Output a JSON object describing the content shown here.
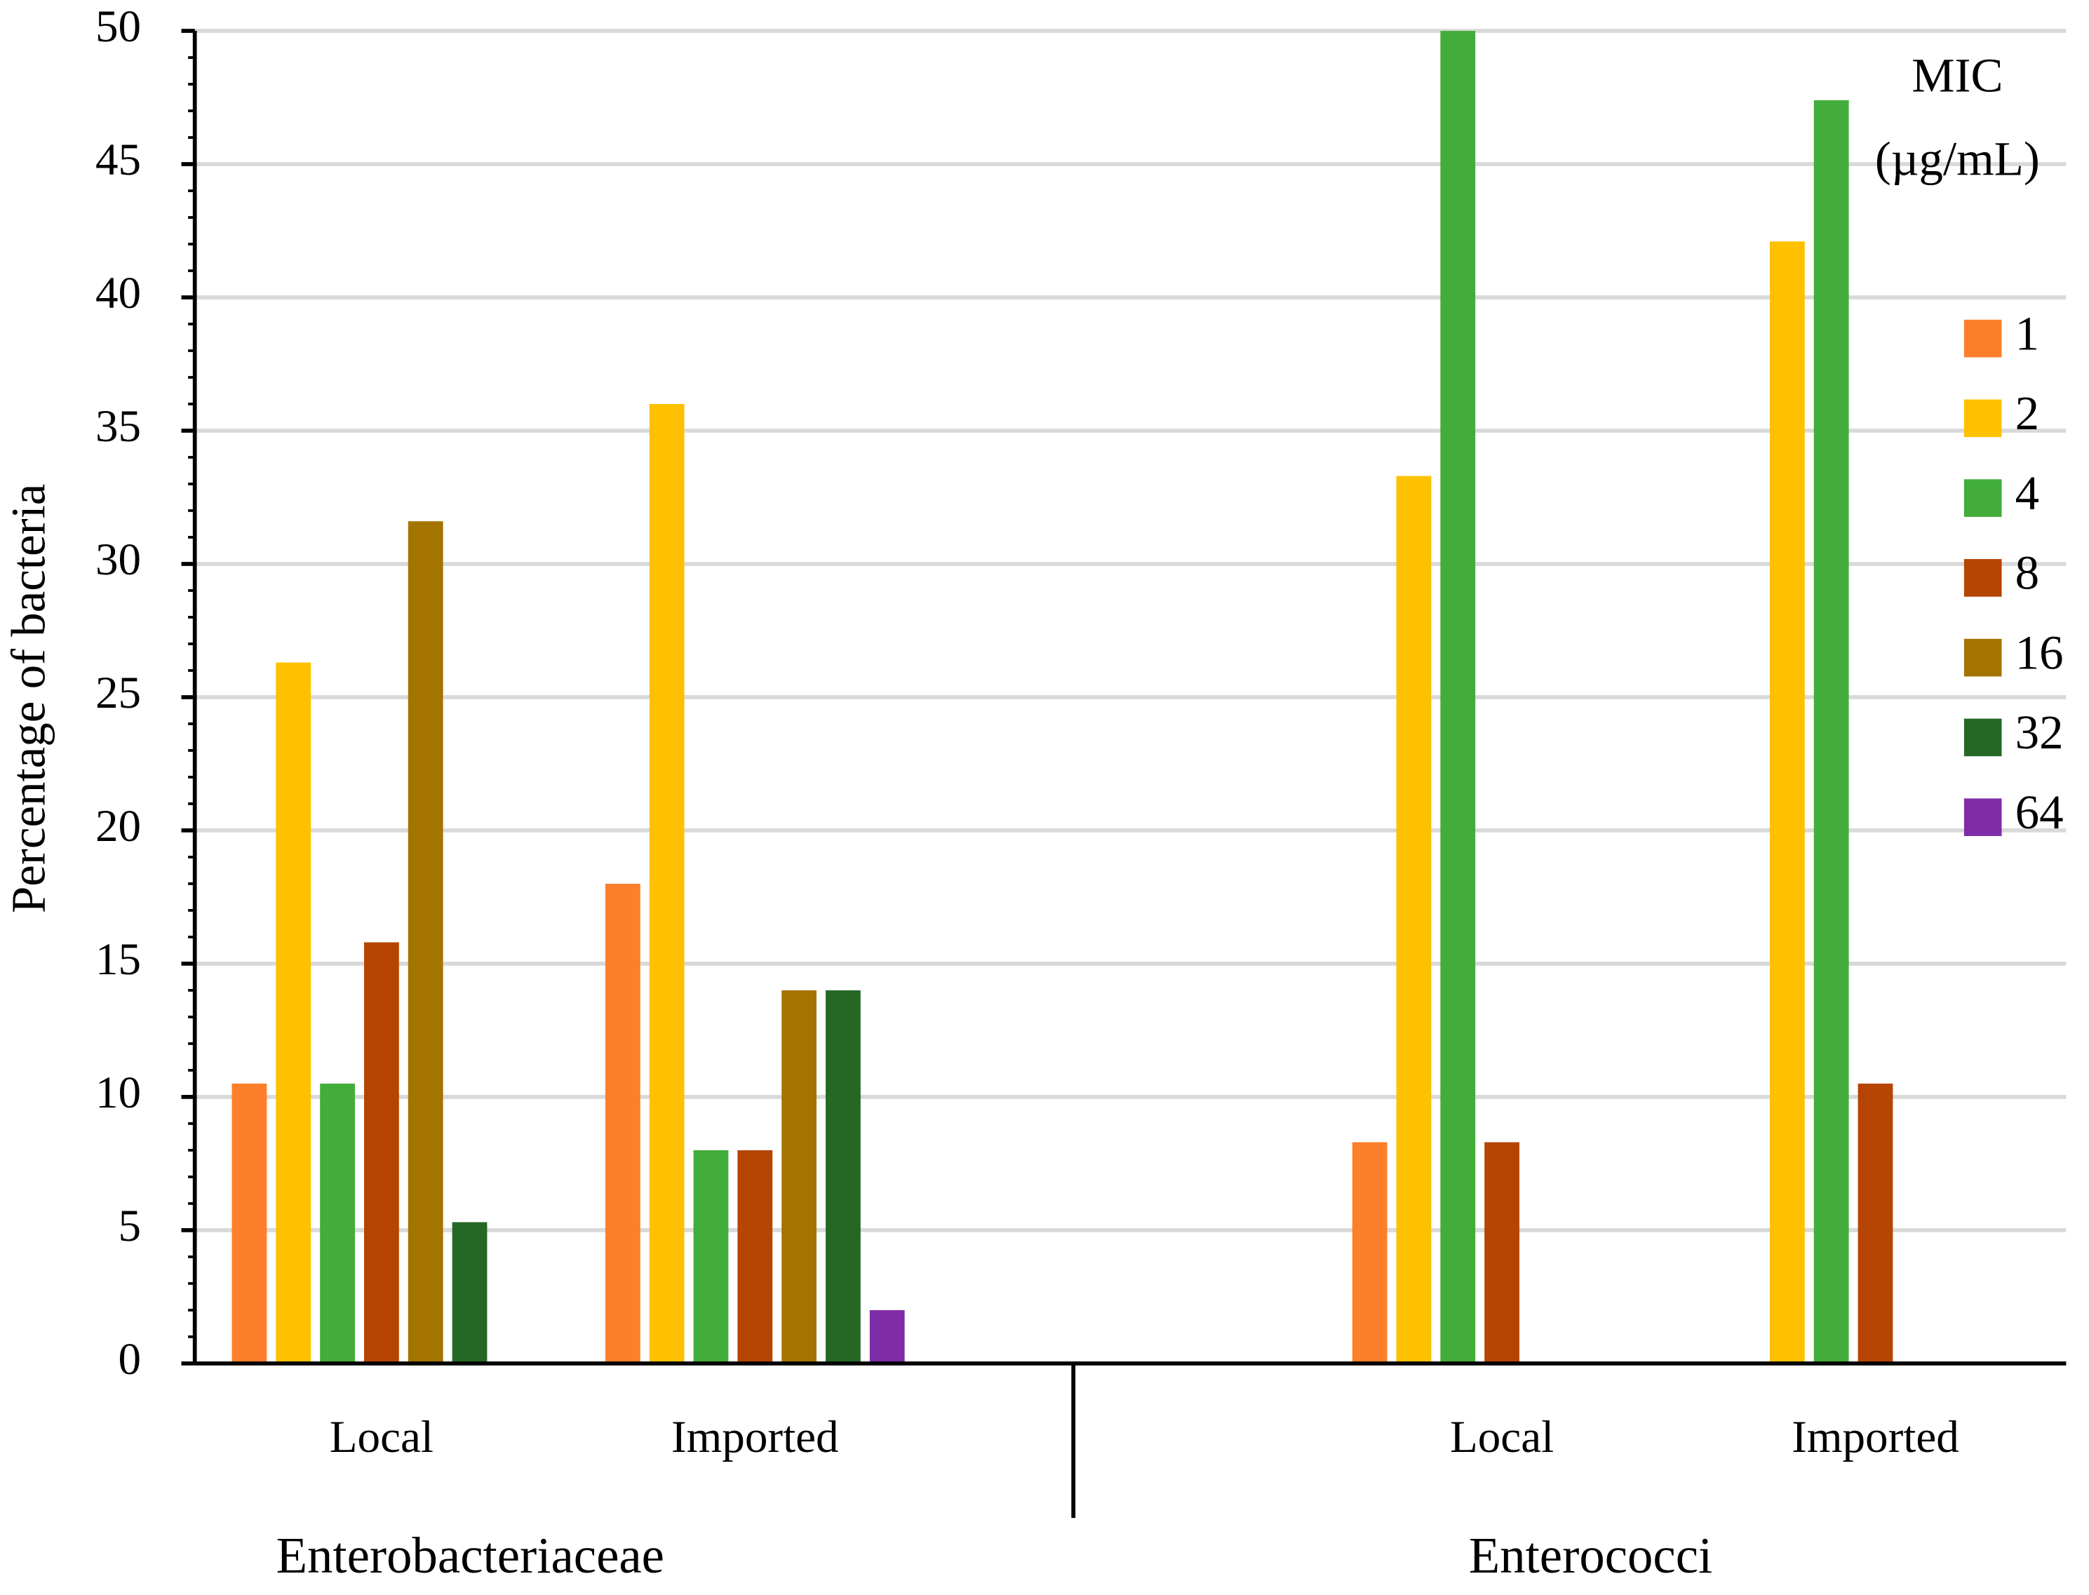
{
  "chart_data": {
    "type": "bar",
    "y_label": "Percentage of bacteria",
    "categories": [
      "Local",
      "Imported",
      "Local",
      "Imported"
    ],
    "groups": [
      "Enterobacteriaceae",
      "Enterococci"
    ],
    "legend_title": [
      "MIC",
      "(µg/mL)"
    ],
    "legend_position": "right",
    "grid": true,
    "ylim": [
      0,
      50
    ],
    "yticks": [
      0,
      5,
      10,
      15,
      20,
      25,
      30,
      35,
      40,
      45,
      50
    ],
    "series": [
      {
        "name": "1",
        "color": "#fd7f2a",
        "values": [
          10.5,
          18,
          8.3,
          0
        ]
      },
      {
        "name": "2",
        "color": "#fdc101",
        "values": [
          26.3,
          36,
          33.3,
          42.1
        ]
      },
      {
        "name": "4",
        "color": "#42ad3a",
        "values": [
          10.5,
          8,
          50,
          47.4
        ]
      },
      {
        "name": "8",
        "color": "#b64501",
        "values": [
          15.8,
          8,
          8.3,
          10.5
        ]
      },
      {
        "name": "16",
        "color": "#a47401",
        "values": [
          31.6,
          14,
          0,
          0
        ]
      },
      {
        "name": "32",
        "color": "#256826",
        "values": [
          5.3,
          14,
          0,
          0
        ]
      },
      {
        "name": "64",
        "color": "#7f2da6",
        "values": [
          0,
          2,
          0,
          0
        ]
      }
    ]
  }
}
